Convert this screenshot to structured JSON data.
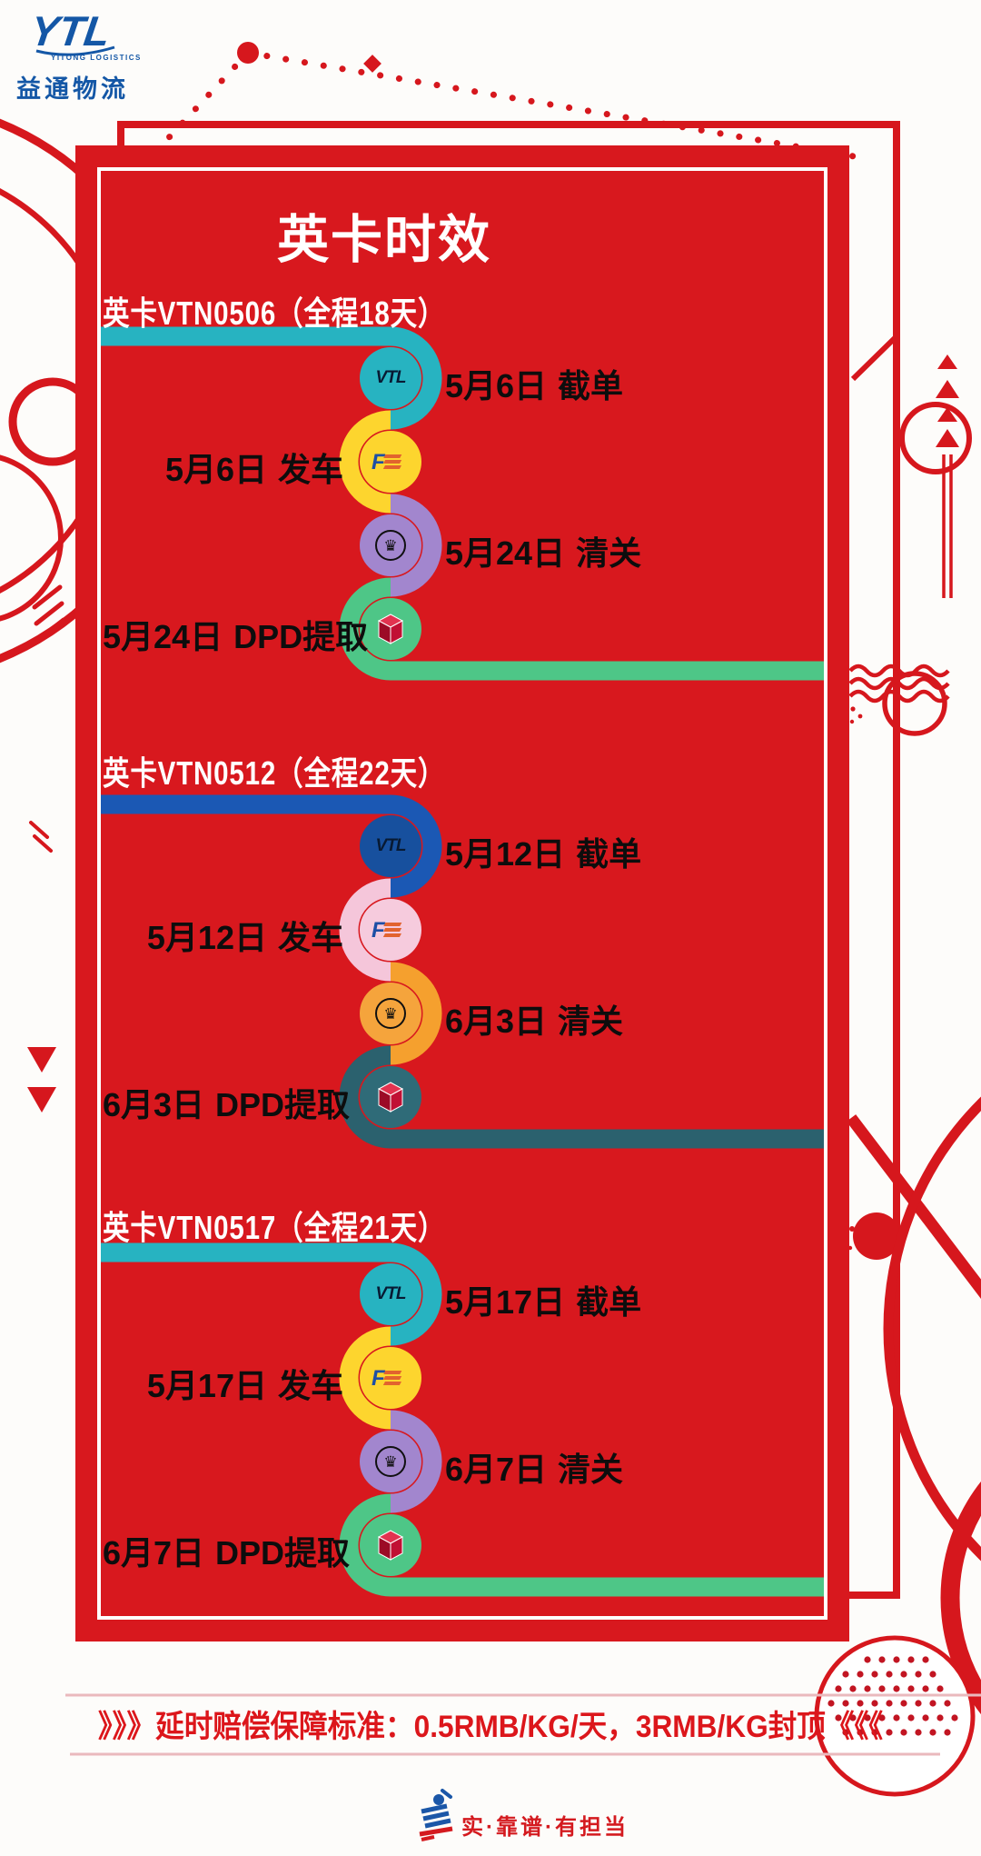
{
  "brand": {
    "logo_text": "YTL",
    "logo_subtext": "YITONG LOGISTICS",
    "company_name": "益通物流"
  },
  "poster": {
    "title": "英卡时效"
  },
  "colors": {
    "background_red": "#d8181e",
    "teal": "#27b3c1",
    "yellow": "#fdd52e",
    "purple": "#a286ce",
    "green": "#4ec687",
    "royal_blue": "#1b58b4",
    "pink": "#f5c6da",
    "orange": "#f5a02e",
    "dark_teal": "#2b616e",
    "brand_blue": "#1457a6",
    "accent_red": "#dc161b"
  },
  "sections": [
    {
      "header": "英卡VTN0506（全程18天）",
      "route_code": "VTN0506",
      "total_days": "全程18天",
      "tube_colors": [
        "#27b3c1",
        "#fdd52e",
        "#a286ce",
        "#4ec687"
      ],
      "circle_colors": [
        "#27b3c1",
        "#fdd52e",
        "#a286ce",
        "#4ec687"
      ],
      "steps": [
        {
          "date": "5月6日",
          "event": "截单",
          "side": "right",
          "icon": "vtl-logo"
        },
        {
          "date": "5月6日",
          "event": "发车",
          "side": "left",
          "icon": "f1-forwarder-logo"
        },
        {
          "date": "5月24日",
          "event": "清关",
          "side": "right",
          "icon": "customs-crown"
        },
        {
          "date": "5月24日",
          "event": "DPD提取",
          "side": "left",
          "icon": "dpd-parcel-cube"
        }
      ]
    },
    {
      "header": "英卡VTN0512（全程22天）",
      "route_code": "VTN0512",
      "total_days": "全程22天",
      "tube_colors": [
        "#1b58b4",
        "#f5c6da",
        "#f5a02e",
        "#2b616e"
      ],
      "circle_colors": [
        "#17509e",
        "#f6cbdd",
        "#f5a43c",
        "#2f6b78"
      ],
      "steps": [
        {
          "date": "5月12日",
          "event": "截单",
          "side": "right",
          "icon": "vtl-logo"
        },
        {
          "date": "5月12日",
          "event": "发车",
          "side": "left",
          "icon": "f1-forwarder-logo"
        },
        {
          "date": "6月3日",
          "event": "清关",
          "side": "right",
          "icon": "customs-crown"
        },
        {
          "date": "6月3日",
          "event": "DPD提取",
          "side": "left",
          "icon": "dpd-parcel-cube"
        }
      ]
    },
    {
      "header": "英卡VTN0517（全程21天）",
      "route_code": "VTN0517",
      "total_days": "全程21天",
      "tube_colors": [
        "#27b3c1",
        "#fdd52e",
        "#a286ce",
        "#4ec687"
      ],
      "circle_colors": [
        "#27b3c1",
        "#fdd52e",
        "#a286ce",
        "#4ec687"
      ],
      "steps": [
        {
          "date": "5月17日",
          "event": "截单",
          "side": "right",
          "icon": "vtl-logo"
        },
        {
          "date": "5月17日",
          "event": "发车",
          "side": "left",
          "icon": "f1-forwarder-logo"
        },
        {
          "date": "6月7日",
          "event": "清关",
          "side": "right",
          "icon": "customs-crown"
        },
        {
          "date": "6月7日",
          "event": "DPD提取",
          "side": "left",
          "icon": "dpd-parcel-cube"
        }
      ]
    }
  ],
  "notice": {
    "text": "》》》延时赔偿保障标准：0.5RMB/KG/天，3RMB/KG封顶《《《"
  },
  "footer": {
    "slogan": "实·靠谱·有担当"
  }
}
